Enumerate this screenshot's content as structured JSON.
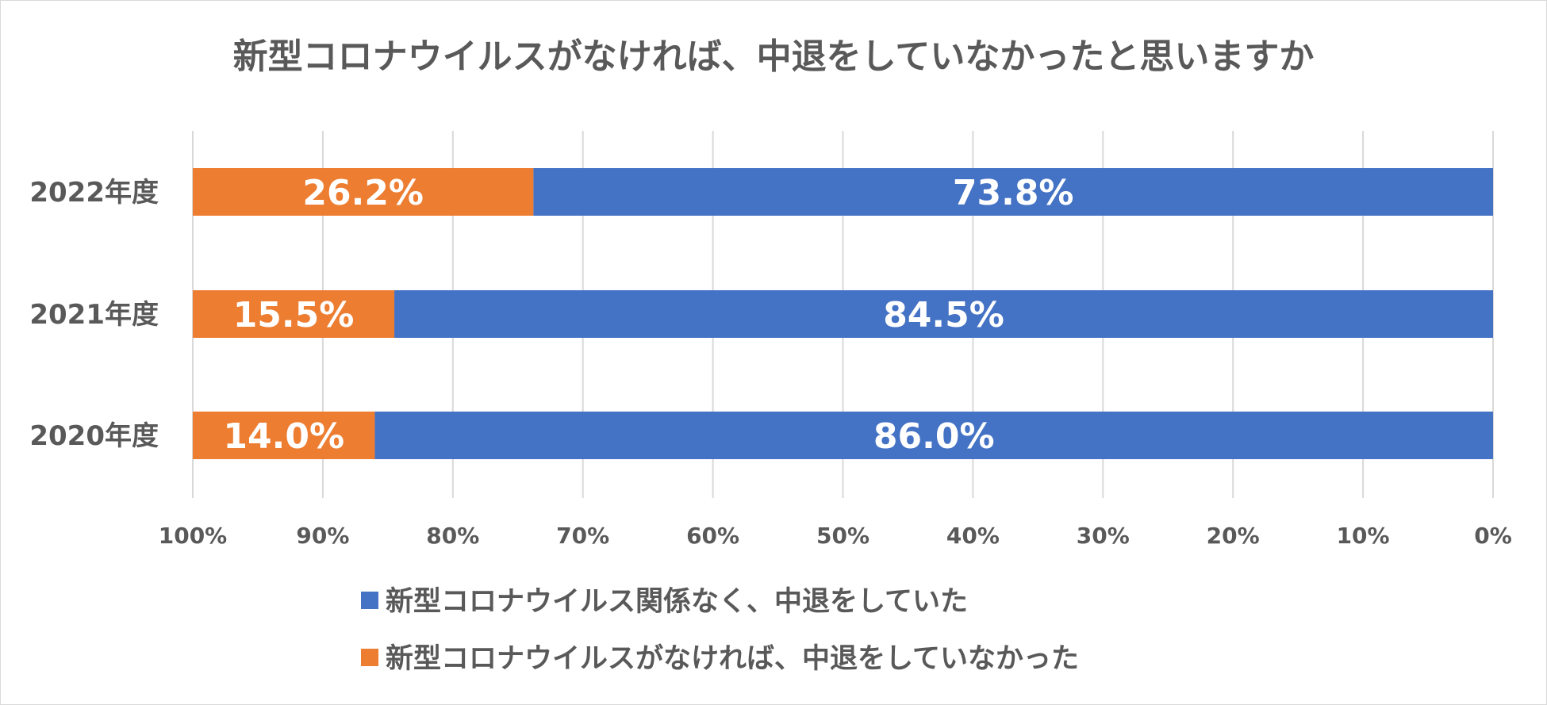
{
  "chart_data": {
    "type": "bar",
    "orientation": "horizontal-stacked-100",
    "title": "新型コロナウイルスがなければ、中退をしていなかったと思いますか",
    "categories": [
      "2022年度",
      "2021年度",
      "2020年度"
    ],
    "series": [
      {
        "name": "新型コロナウイルスがなければ、中退をしていなかった",
        "color": "#ED7D31",
        "values": [
          26.2,
          15.5,
          14.0
        ],
        "labels": [
          "26.2%",
          "15.5%",
          "14.0%"
        ]
      },
      {
        "name": "新型コロナウイルス関係なく、中退をしていた",
        "color": "#4472C4",
        "values": [
          73.8,
          84.5,
          86.0
        ],
        "labels": [
          "73.8%",
          "84.5%",
          "86.0%"
        ]
      }
    ],
    "x_axis": {
      "ticks": [
        "100%",
        "90%",
        "80%",
        "70%",
        "60%",
        "50%",
        "40%",
        "30%",
        "20%",
        "10%",
        "0%"
      ],
      "range": [
        100,
        0
      ],
      "reversed": true
    },
    "grid": true,
    "legend": {
      "placement": "bottom",
      "entries": [
        {
          "name": "新型コロナウイルス関係なく、中退をしていた",
          "color": "#4472C4"
        },
        {
          "name": "新型コロナウイルスがなければ、中退をしていなかった",
          "color": "#ED7D31"
        }
      ]
    }
  }
}
